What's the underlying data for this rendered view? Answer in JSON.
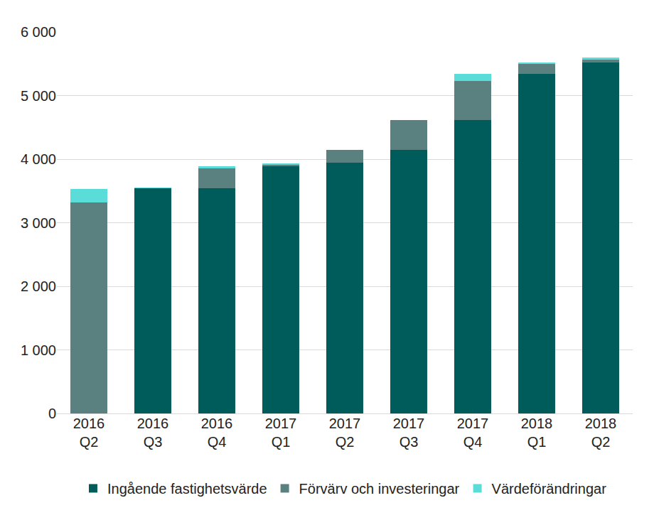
{
  "chart_data": {
    "type": "bar",
    "stacked": true,
    "categories": [
      "2016 Q2",
      "2016 Q3",
      "2016 Q4",
      "2017 Q1",
      "2017 Q2",
      "2017 Q3",
      "2017 Q4",
      "2018 Q1",
      "2018 Q2"
    ],
    "series": [
      {
        "name": "Ingående fastighetsvärde",
        "color": "#005c5a",
        "values": [
          0,
          3540,
          3540,
          3890,
          3940,
          4150,
          4610,
          5340,
          5520
        ]
      },
      {
        "name": "Förvärv och investeringar",
        "color": "#5a807f",
        "values": [
          3320,
          0,
          310,
          20,
          210,
          460,
          620,
          160,
          40
        ]
      },
      {
        "name": "Värdeförändringar",
        "color": "#5adcd8",
        "values": [
          210,
          10,
          35,
          20,
          0,
          0,
          115,
          15,
          40
        ]
      }
    ],
    "ylim": [
      0,
      6000
    ],
    "yticks": [
      0,
      {
        "value": 1000,
        "label": "1 000"
      },
      {
        "value": 2000,
        "label": "2 000"
      },
      {
        "value": 3000,
        "label": "3 000"
      },
      {
        "value": 4000,
        "label": "4 000"
      },
      {
        "value": 5000,
        "label": "5 000"
      },
      {
        "value": 6000,
        "label": "6 000"
      }
    ],
    "grid": true,
    "legend": "bottom"
  }
}
